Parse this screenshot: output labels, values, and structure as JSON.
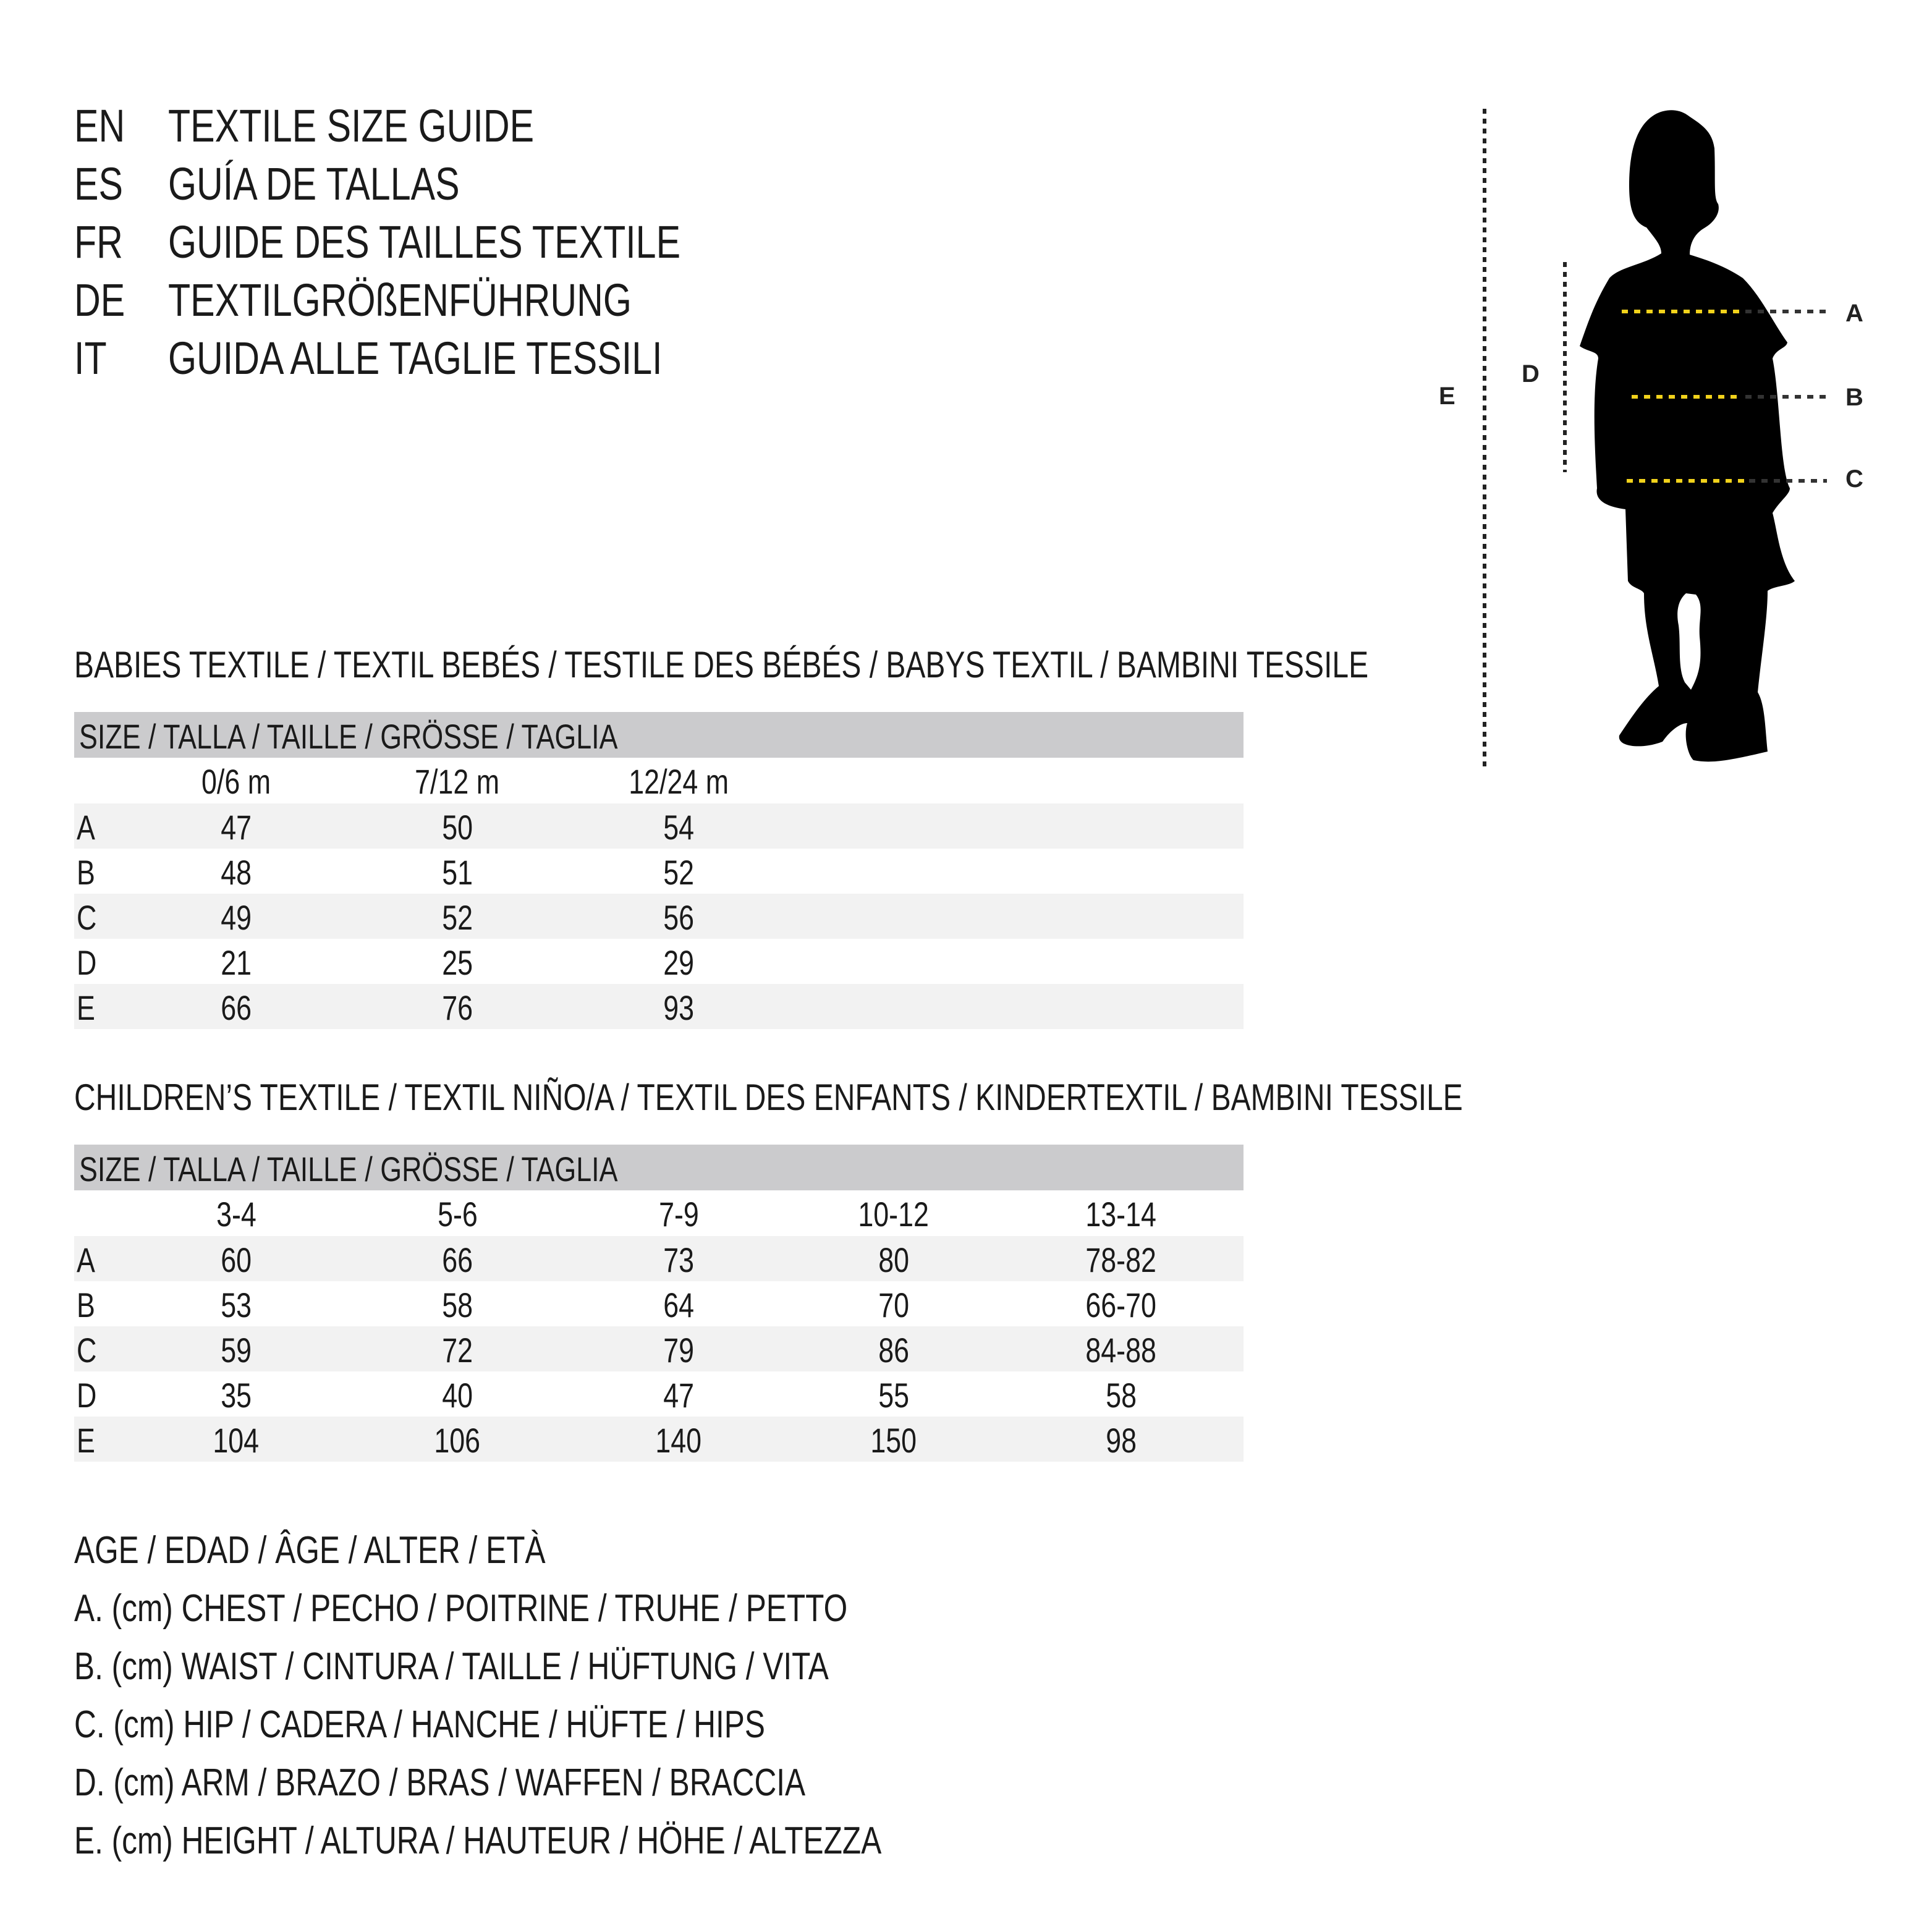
{
  "titles": [
    {
      "code": "EN",
      "text": "TEXTILE SIZE GUIDE"
    },
    {
      "code": "ES",
      "text": "GUÍA DE TALLAS"
    },
    {
      "code": "FR",
      "text": "GUIDE DES TAILLES TEXTILE"
    },
    {
      "code": "DE",
      "text": "TEXTILGRÖßENFÜHRUNG"
    },
    {
      "code": "IT",
      "text": "GUIDA ALLE TAGLIE TESSILI"
    }
  ],
  "babies": {
    "heading": "BABIES TEXTILE / TEXTIL BEBÉS / TESTILE DES BÉBÉS / BABYS TEXTIL / BAMBINI TESSILE",
    "size_label": "SIZE / TALLA / TAILLE / GRÖSSE / TAGLIA",
    "columns": [
      "0/6 m",
      "7/12 m",
      "12/24 m"
    ],
    "rows": [
      {
        "label": "A",
        "values": [
          "47",
          "50",
          "54"
        ]
      },
      {
        "label": "B",
        "values": [
          "48",
          "51",
          "52"
        ]
      },
      {
        "label": "C",
        "values": [
          "49",
          "52",
          "56"
        ]
      },
      {
        "label": "D",
        "values": [
          "21",
          "25",
          "29"
        ]
      },
      {
        "label": "E",
        "values": [
          "66",
          "76",
          "93"
        ]
      }
    ]
  },
  "children": {
    "heading": "CHILDREN’S TEXTILE / TEXTIL NIÑO/A / TEXTIL DES ENFANTS / KINDERTEXTIL / BAMBINI TESSILE",
    "size_label": "SIZE / TALLA / TAILLE / GRÖSSE / TAGLIA",
    "columns": [
      "3-4",
      "5-6",
      "7-9",
      "10-12",
      "13-14"
    ],
    "rows": [
      {
        "label": "A",
        "values": [
          "60",
          "66",
          "73",
          "80",
          "78-82"
        ]
      },
      {
        "label": "B",
        "values": [
          "53",
          "58",
          "64",
          "70",
          "66-70"
        ]
      },
      {
        "label": "C",
        "values": [
          "59",
          "72",
          "79",
          "86",
          "84-88"
        ]
      },
      {
        "label": "D",
        "values": [
          "35",
          "40",
          "47",
          "55",
          "58"
        ]
      },
      {
        "label": "E",
        "values": [
          "104",
          "106",
          "140",
          "150",
          "98"
        ]
      }
    ]
  },
  "legend": [
    "AGE / EDAD / ÂGE / ALTER / ETÀ",
    "A. (cm) CHEST / PECHO / POITRINE / TRUHE / PETTO",
    "B. (cm) WAIST / CINTURA / TAILLE / HÜFTUNG / VITA",
    "C. (cm) HIP / CADERA / HANCHE / HÜFTE / HIPS",
    "D. (cm) ARM / BRAZO / BRAS / WAFFEN / BRACCIA",
    "E. (cm) HEIGHT / ALTURA / HAUTEUR / HÖHE / ALTEZZA"
  ],
  "figure": {
    "labels": {
      "a": "A",
      "b": "B",
      "c": "C",
      "d": "D",
      "e": "E"
    },
    "measure_line_color": "#f2d21b",
    "silhouette_color": "#000000"
  }
}
